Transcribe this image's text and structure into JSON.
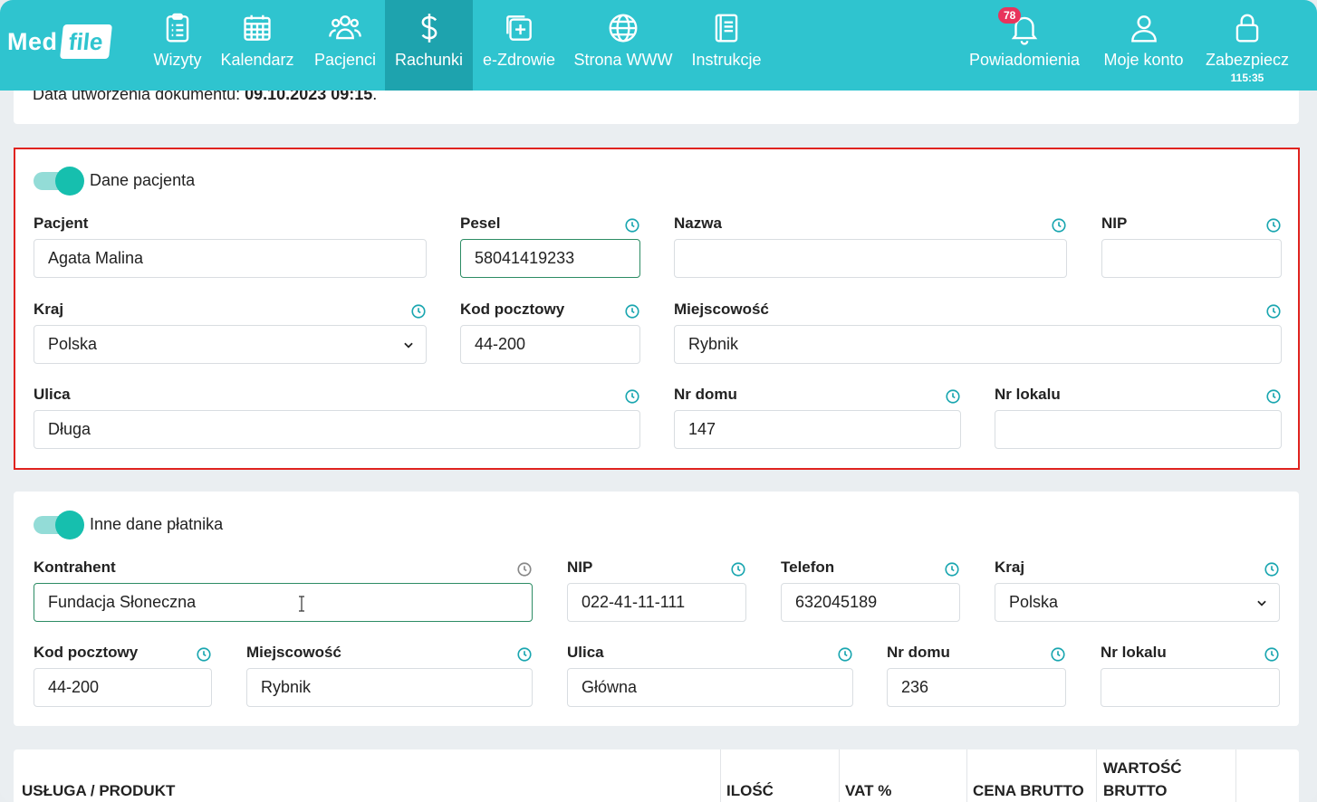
{
  "colors": {
    "nav_bg": "#2fc4cf",
    "nav_active": "#1ea3ae",
    "accent": "#16bfae",
    "highlight_border": "#e0231f",
    "badge": "#e8345c"
  },
  "logo": {
    "med": "Med",
    "file": "file"
  },
  "nav": {
    "items": [
      {
        "label": "Wizyty",
        "icon": "clipboard-list-icon"
      },
      {
        "label": "Kalendarz",
        "icon": "calendar-icon"
      },
      {
        "label": "Pacjenci",
        "icon": "users-icon"
      },
      {
        "label": "Rachunki",
        "icon": "dollar-icon",
        "active": true
      },
      {
        "label": "e-Zdrowie",
        "icon": "medical-plus-icon"
      },
      {
        "label": "Strona WWW",
        "icon": "globe-icon"
      },
      {
        "label": "Instrukcje",
        "icon": "book-icon"
      }
    ],
    "notifications": {
      "label": "Powiadomienia",
      "badge": "78",
      "icon": "bell-icon"
    },
    "account": {
      "label": "Moje konto",
      "icon": "user-icon"
    },
    "lock": {
      "label": "Zabezpiecz",
      "timer": "115:35",
      "icon": "lock-icon"
    }
  },
  "document": {
    "created_label": "Data utworzenia dokumentu: ",
    "created_value": "09.10.2023 09:15",
    "created_suffix": "."
  },
  "patient": {
    "toggle_label": "Dane pacjenta",
    "pacjent": {
      "label": "Pacjent",
      "value": "Agata Malina"
    },
    "pesel": {
      "label": "Pesel",
      "value": "58041419233"
    },
    "nazwa": {
      "label": "Nazwa",
      "value": ""
    },
    "nip": {
      "label": "NIP",
      "value": ""
    },
    "kraj": {
      "label": "Kraj",
      "value": "Polska"
    },
    "kod": {
      "label": "Kod pocztowy",
      "value": "44-200"
    },
    "miejscowosc": {
      "label": "Miejscowość",
      "value": "Rybnik"
    },
    "ulica": {
      "label": "Ulica",
      "value": "Długa"
    },
    "nr_domu": {
      "label": "Nr domu",
      "value": "147"
    },
    "nr_lokalu": {
      "label": "Nr lokalu",
      "value": ""
    }
  },
  "payer": {
    "toggle_label": "Inne dane płatnika",
    "kontrahent": {
      "label": "Kontrahent",
      "value": "Fundacja Słoneczna"
    },
    "nip": {
      "label": "NIP",
      "value": "022-41-11-111"
    },
    "telefon": {
      "label": "Telefon",
      "value": "632045189"
    },
    "kraj": {
      "label": "Kraj",
      "value": "Polska"
    },
    "kod": {
      "label": "Kod pocztowy",
      "value": "44-200"
    },
    "miejscowosc": {
      "label": "Miejscowość",
      "value": "Rybnik"
    },
    "ulica": {
      "label": "Ulica",
      "value": "Główna"
    },
    "nr_domu": {
      "label": "Nr domu",
      "value": "236"
    },
    "nr_lokalu": {
      "label": "Nr lokalu",
      "value": ""
    }
  },
  "table": {
    "headers": [
      "USŁUGA / PRODUKT",
      "ILOŚĆ",
      "VAT %",
      "CENA BRUTTO",
      "WARTOŚĆ",
      "BRUTTO"
    ]
  }
}
